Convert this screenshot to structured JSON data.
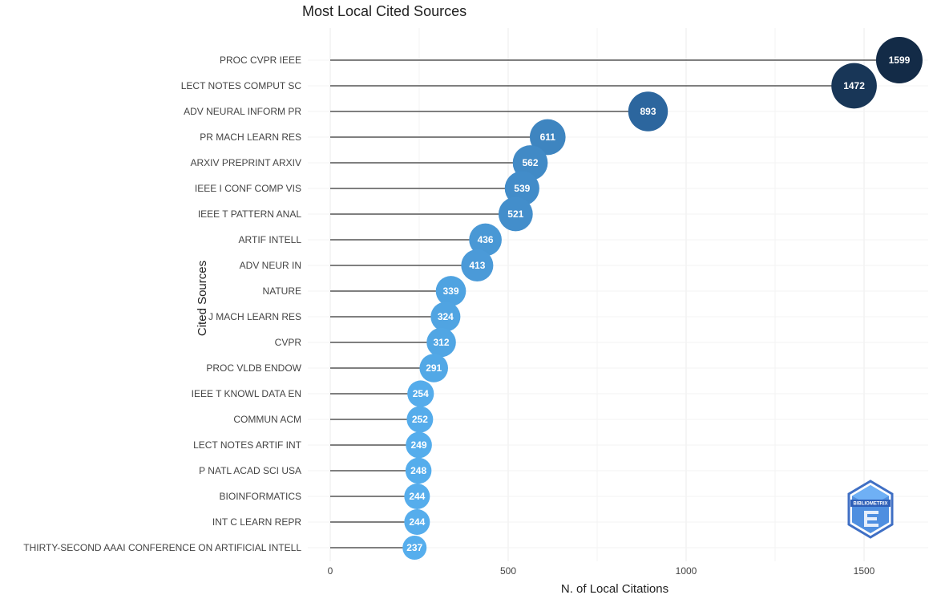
{
  "chart_data": {
    "type": "lollipop",
    "title": "Most Local Cited Sources",
    "xlabel": "N. of Local Citations",
    "ylabel": "Cited Sources",
    "xlim": [
      0,
      1650
    ],
    "xticks": [
      0,
      500,
      1000,
      1500
    ],
    "grid": true,
    "categories": [
      "PROC CVPR IEEE",
      "LECT NOTES COMPUT SC",
      "ADV NEURAL INFORM PR",
      "PR MACH LEARN RES",
      "ARXIV PREPRINT ARXIV",
      "IEEE I CONF COMP VIS",
      "IEEE T PATTERN ANAL",
      "ARTIF INTELL",
      "ADV NEUR IN",
      "NATURE",
      "J MACH LEARN RES",
      "CVPR",
      "PROC VLDB ENDOW",
      "IEEE T KNOWL DATA EN",
      "COMMUN ACM",
      "LECT NOTES ARTIF INT",
      "P NATL ACAD SCI USA",
      "BIOINFORMATICS",
      "INT C LEARN REPR",
      "THIRTY-SECOND AAAI CONFERENCE ON ARTIFICIAL INTELL"
    ],
    "values": [
      1599,
      1472,
      893,
      611,
      562,
      539,
      521,
      436,
      413,
      339,
      324,
      312,
      291,
      254,
      252,
      249,
      248,
      244,
      244,
      237
    ],
    "value_labels": [
      "1599",
      "1472",
      "893",
      "611",
      "562",
      "539",
      "521",
      "436",
      "413",
      "339",
      "324",
      "312",
      "291",
      "254",
      "252",
      "249",
      "248",
      "244",
      "244",
      "237"
    ],
    "colors": {
      "dark": "#132b47",
      "mid": "#2e6aa3",
      "light": "#56aeed",
      "stem": "#555555",
      "grid": "#ebebeb"
    }
  },
  "logo": {
    "text": "BIBLIOMETRIX"
  }
}
